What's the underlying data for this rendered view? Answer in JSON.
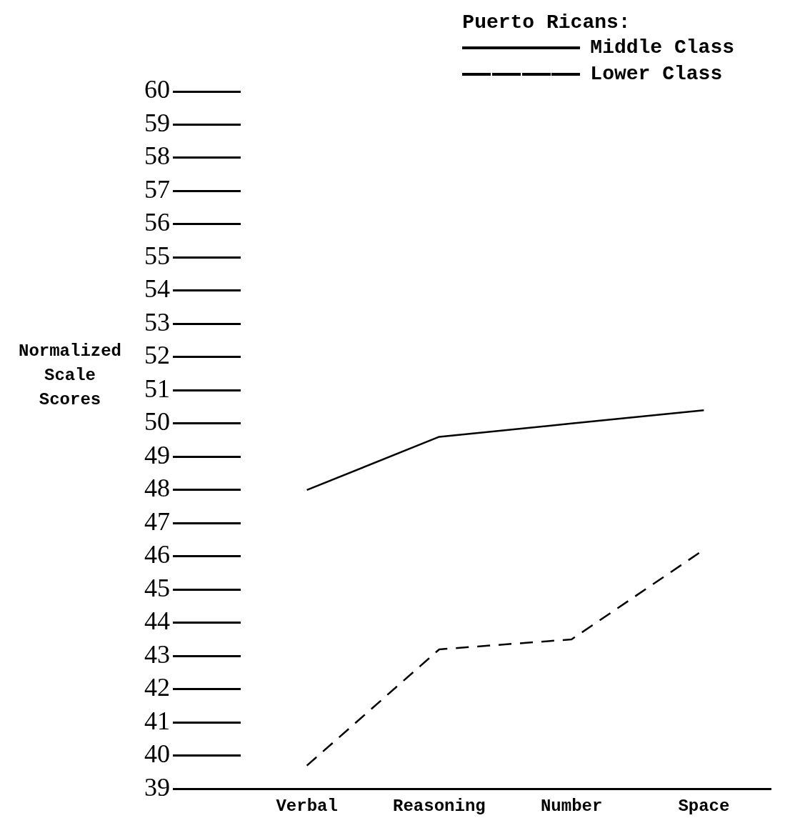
{
  "chart_data": {
    "type": "line",
    "ylabel": "Normalized Scale Scores",
    "legend_title": "Puerto Ricans:",
    "categories": [
      "Verbal",
      "Reasoning",
      "Number",
      "Space"
    ],
    "series": [
      {
        "name": "Middle Class",
        "color": "#000000",
        "values": [
          48.0,
          49.6,
          50.0,
          50.4
        ],
        "line_style": "solid"
      },
      {
        "name": "Lower Class",
        "color": "#000000",
        "values": [
          39.7,
          43.2,
          43.5,
          46.2
        ],
        "line_style": "dashed"
      }
    ],
    "ylim": [
      39,
      60
    ],
    "yticks": [
      39,
      40,
      41,
      42,
      43,
      44,
      45,
      46,
      47,
      48,
      49,
      50,
      51,
      52,
      53,
      54,
      55,
      56,
      57,
      58,
      59,
      60
    ],
    "grid": false,
    "legend": "top right",
    "marker": "none"
  }
}
